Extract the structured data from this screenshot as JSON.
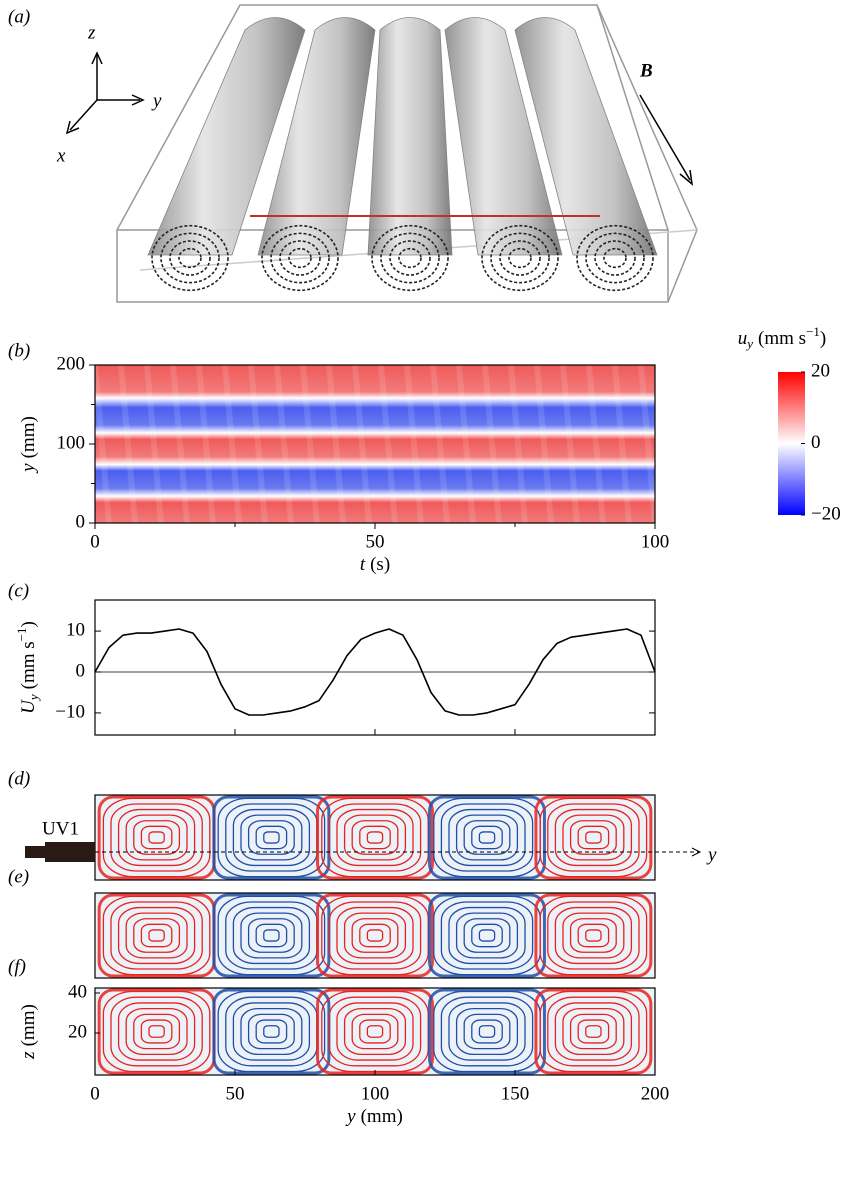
{
  "panel_labels": [
    "(a)",
    "(b)",
    "(c)",
    "(d)",
    "(e)",
    "(f)"
  ],
  "diagram": {
    "axis_z": "z",
    "axis_y": "y",
    "axis_x": "x",
    "field": "B"
  },
  "chart_data": [
    {
      "type": "heatmap",
      "xlabel": {
        "symbol": "t",
        "unit": "(s)"
      },
      "ylabel": {
        "symbol": "y",
        "unit": "(mm)"
      },
      "xlim": [
        0,
        100
      ],
      "xticks": [
        0,
        50,
        100
      ],
      "xminorticks": [
        25,
        75
      ],
      "ylim": [
        0,
        200
      ],
      "yticks": [
        0,
        100,
        200
      ],
      "yminorticks": [
        50,
        150
      ],
      "colorbar": {
        "label": {
          "symbol": "u",
          "sub": "y",
          "unit": "(mm s",
          "sup": "−1",
          "close": ")"
        },
        "lim": [
          -20,
          20
        ],
        "ticks": [
          20,
          0,
          {
            "value": -20,
            "label": "−20"
          }
        ],
        "colors": [
          "#0000ff",
          "#ffffff",
          "#ff0000"
        ]
      }
    },
    {
      "type": "line",
      "ylabel": {
        "symbol": "U",
        "sub": "y",
        "unit": "(mm s",
        "sup": "−1",
        "close": ")"
      },
      "x": [
        0,
        5,
        10,
        15,
        20,
        25,
        30,
        35,
        40,
        45,
        50,
        55,
        60,
        65,
        70,
        75,
        80,
        85,
        90,
        95,
        100,
        105,
        110,
        115,
        120,
        125,
        130,
        135,
        140,
        145,
        150,
        155,
        160,
        165,
        170,
        175,
        180,
        185,
        190,
        195,
        200
      ],
      "values": [
        0,
        6,
        9,
        9.5,
        9.5,
        10,
        10.5,
        9.5,
        5,
        -3,
        -9,
        -10.5,
        -10.5,
        -10,
        -9.5,
        -8.5,
        -7,
        -2,
        4,
        8,
        9.5,
        10.5,
        9,
        3,
        -5,
        -9.5,
        -10.5,
        -10.5,
        -10,
        -9,
        -8,
        -3,
        3,
        7,
        8.5,
        9,
        9.5,
        10,
        10.5,
        9,
        0
      ],
      "color": "#000000",
      "xlim": [
        0,
        200
      ],
      "xticks": [
        0,
        50,
        100,
        150,
        200
      ],
      "ylim": [
        -15.4,
        17.6
      ],
      "yticks": [
        10,
        0,
        {
          "value": -10,
          "label": "−10"
        }
      ]
    },
    {
      "type": "streamlines",
      "probe": "UV1",
      "axis_arrow": "y",
      "colors": [
        "#e8231f",
        "#1f4fa8"
      ]
    },
    {
      "type": "streamlines",
      "colors": [
        "#e8231f",
        "#1f4fa8"
      ]
    },
    {
      "type": "streamlines",
      "colors": [
        "#e8231f",
        "#1f4fa8"
      ],
      "xlabel": {
        "symbol": "y",
        "unit": "(mm)"
      },
      "ylabel": {
        "symbol": "z",
        "unit": "(mm)"
      },
      "xlim": [
        0,
        200
      ],
      "xticks": [
        0,
        50,
        100,
        150,
        200
      ],
      "ylim": [
        -1,
        42.5
      ],
      "yticks": [
        20,
        40
      ]
    }
  ]
}
